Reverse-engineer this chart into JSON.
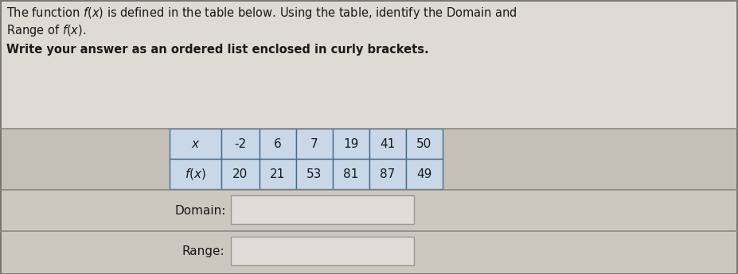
{
  "title_line1": "The function $f(x)$ is defined in the table below. Using the table, identify the Domain and",
  "title_line2": "Range of $f(x)$.",
  "subtitle": "Write your answer as an ordered list enclosed in curly brackets.",
  "x_label": "$x$",
  "fx_label": "$f(x)$",
  "x_values": [
    "-2",
    "6",
    "7",
    "19",
    "41",
    "50"
  ],
  "fx_values": [
    "20",
    "21",
    "53",
    "81",
    "87",
    "49"
  ],
  "domain_label": "Domain:",
  "range_label": "Range:",
  "bg_color": "#ccc8c0",
  "table_section_bg": "#c4c0b8",
  "domain_section_bg": "#ccc8c0",
  "range_section_bg": "#ccc8c0",
  "text_color": "#1a1a1a",
  "border_color": "#888884",
  "cell_bg": "#c8d8e8",
  "cell_header_bg": "#c0d4e8",
  "input_box_bg": "#e0ddd8",
  "input_box_border": "#aaaaaa",
  "top_section_bg": "#dedad4"
}
